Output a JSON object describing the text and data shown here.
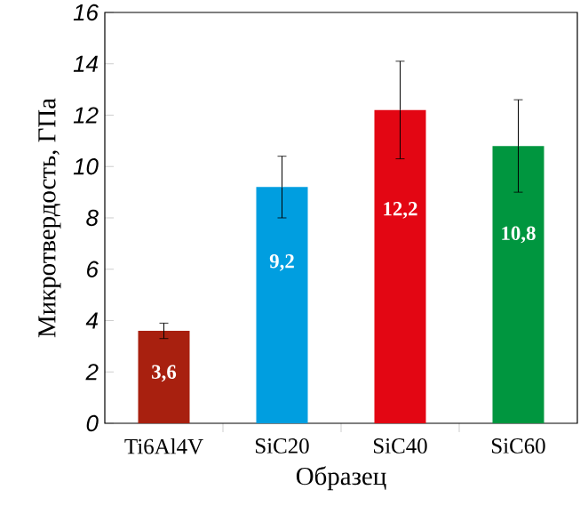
{
  "chart_data": {
    "type": "bar",
    "xlabel": "Образец",
    "ylabel": "Микротвердость, ГПа",
    "categories": [
      "Ti6Al4V",
      "SiC20",
      "SiC40",
      "SiC60"
    ],
    "values": [
      3.6,
      9.2,
      12.2,
      10.8
    ],
    "colors": [
      "#a8200f",
      "#009ee0",
      "#e30613",
      "#00963f"
    ],
    "errors": [
      0.3,
      1.2,
      1.9,
      1.8
    ],
    "value_labels": [
      "3,6",
      "9,2",
      "12,2",
      "10,8"
    ],
    "ylim": [
      0,
      16
    ],
    "yticks": [
      0,
      2,
      4,
      6,
      8,
      10,
      12,
      14,
      16
    ]
  }
}
